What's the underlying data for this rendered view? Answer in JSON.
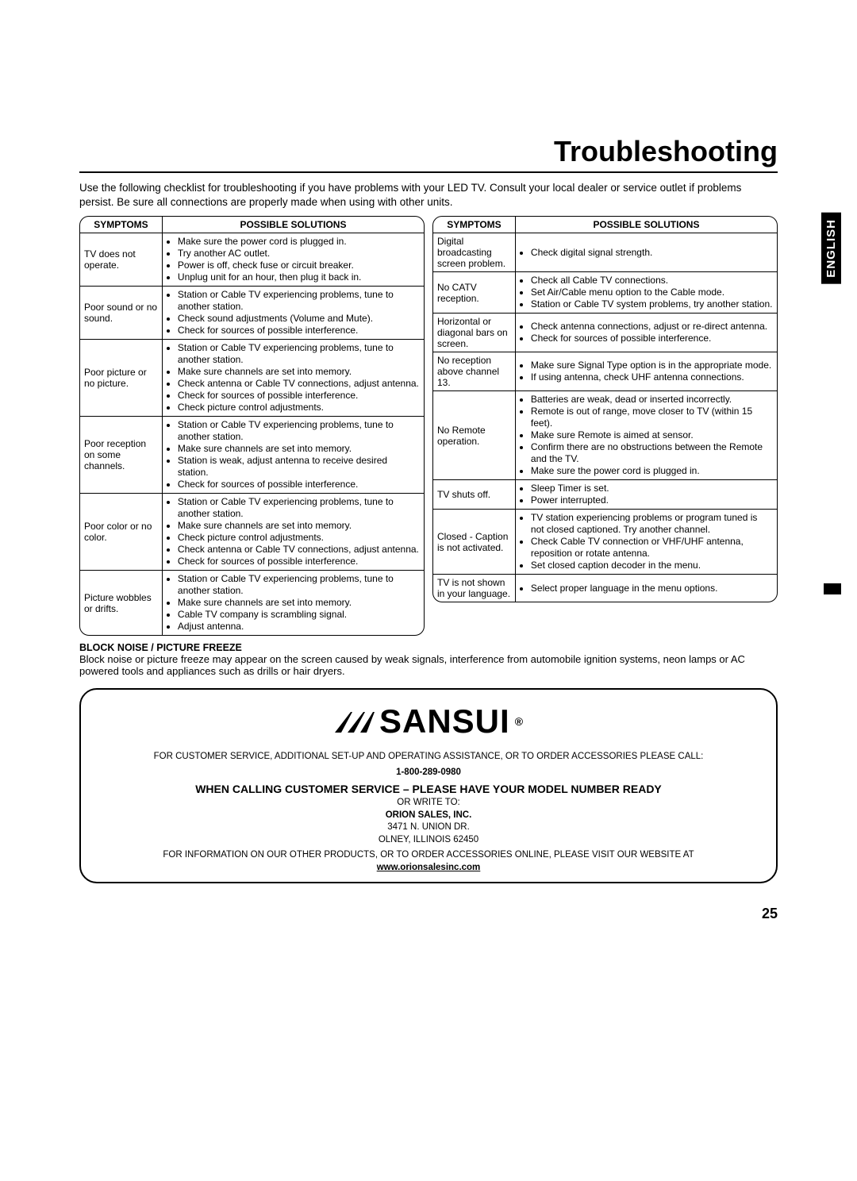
{
  "page_title": "Troubleshooting",
  "intro": "Use the following checklist for troubleshooting if you have problems with your LED TV. Consult your local dealer or service outlet if problems persist. Be sure all connections are properly made when using with other units.",
  "language_tab": "ENGLISH",
  "header_symptoms": "SYMPTOMS",
  "header_solutions": "POSSIBLE SOLUTIONS",
  "left_rows": [
    {
      "symptom": "TV does not operate.",
      "solutions": [
        "Make sure the power cord is plugged in.",
        "Try another AC outlet.",
        "Power is off, check fuse or circuit breaker.",
        "Unplug unit for an hour, then plug it back in."
      ]
    },
    {
      "symptom": "Poor sound or no sound.",
      "solutions": [
        "Station or Cable TV experiencing problems, tune to another station.",
        "Check sound adjustments (Volume and Mute).",
        "Check for sources of possible interference."
      ]
    },
    {
      "symptom": "Poor picture or no picture.",
      "solutions": [
        "Station or Cable TV experiencing problems, tune to another station.",
        "Make sure channels are set into memory.",
        "Check antenna or Cable TV connections, adjust antenna.",
        "Check for sources of possible interference.",
        "Check picture control adjustments."
      ]
    },
    {
      "symptom": "Poor reception on some channels.",
      "solutions": [
        "Station or Cable TV experiencing problems, tune to another station.",
        "Make sure channels are set into memory.",
        "Station is weak, adjust antenna to receive desired station.",
        "Check for sources of possible interference."
      ]
    },
    {
      "symptom": "Poor color or no color.",
      "solutions": [
        "Station or Cable TV experiencing problems, tune to another station.",
        "Make sure channels are set into memory.",
        "Check picture control adjustments.",
        "Check antenna or Cable TV connections, adjust antenna.",
        "Check for sources of possible interference."
      ]
    },
    {
      "symptom": "Picture wobbles or drifts.",
      "solutions": [
        "Station or Cable TV experiencing problems, tune to another station.",
        "Make sure channels are set into memory.",
        "Cable TV company is scrambling signal.",
        "Adjust antenna."
      ]
    }
  ],
  "right_rows": [
    {
      "symptom": "Digital broadcasting screen problem.",
      "solutions": [
        "Check digital signal strength."
      ]
    },
    {
      "symptom": "No CATV reception.",
      "solutions": [
        "Check all Cable TV connections.",
        "Set Air/Cable menu option to the Cable mode.",
        "Station or Cable TV system problems, try another station."
      ]
    },
    {
      "symptom": "Horizontal or diagonal bars on screen.",
      "solutions": [
        "Check antenna connections, adjust or re-direct antenna.",
        "Check for sources of possible interference."
      ]
    },
    {
      "symptom": "No reception above channel 13.",
      "solutions": [
        "Make sure Signal Type option is in the appropriate mode.",
        "If using antenna, check UHF antenna connections."
      ]
    },
    {
      "symptom": "No Remote operation.",
      "solutions": [
        "Batteries are weak, dead or inserted incorrectly.",
        "Remote is out of range, move closer to TV (within 15 feet).",
        "Make sure Remote is aimed at sensor.",
        "Confirm there are no obstructions between the Remote and the TV.",
        "Make sure the power cord is plugged in."
      ]
    },
    {
      "symptom": "TV shuts off.",
      "solutions": [
        "Sleep Timer is set.",
        "Power interrupted."
      ]
    },
    {
      "symptom": "Closed - Caption is not activated.",
      "solutions": [
        "TV station experiencing problems or program tuned is not closed captioned. Try another channel.",
        "Check Cable TV connection or VHF/UHF antenna, reposition or rotate antenna.",
        "Set closed caption decoder in the menu."
      ]
    },
    {
      "symptom": "TV is not shown in your language.",
      "solutions": [
        "Select proper language in the menu options."
      ]
    }
  ],
  "block_heading": "BLOCK NOISE / PICTURE FREEZE",
  "block_text": "Block noise or picture freeze may appear on the screen caused by weak signals, interference from automobile ignition systems, neon lamps or AC powered tools and appliances such as drills or hair dryers.",
  "brand_name": "SANSUI",
  "service_line1": "FOR CUSTOMER SERVICE, ADDITIONAL SET-UP AND OPERATING ASSISTANCE, OR TO ORDER ACCESSORIES PLEASE CALL:",
  "phone": "1-800-289-0980",
  "model_line": "WHEN CALLING CUSTOMER SERVICE – PLEASE HAVE YOUR MODEL NUMBER READY",
  "write_to": "OR WRITE TO:",
  "company": "ORION SALES, INC.",
  "addr1": "3471 N. UNION DR.",
  "addr2": "OLNEY, ILLINOIS 62450",
  "info_line": "FOR INFORMATION ON OUR OTHER PRODUCTS, OR TO ORDER ACCESSORIES ONLINE, PLEASE VISIT OUR WEBSITE AT",
  "website": "www.orionsalesinc.com",
  "page_number": "25"
}
